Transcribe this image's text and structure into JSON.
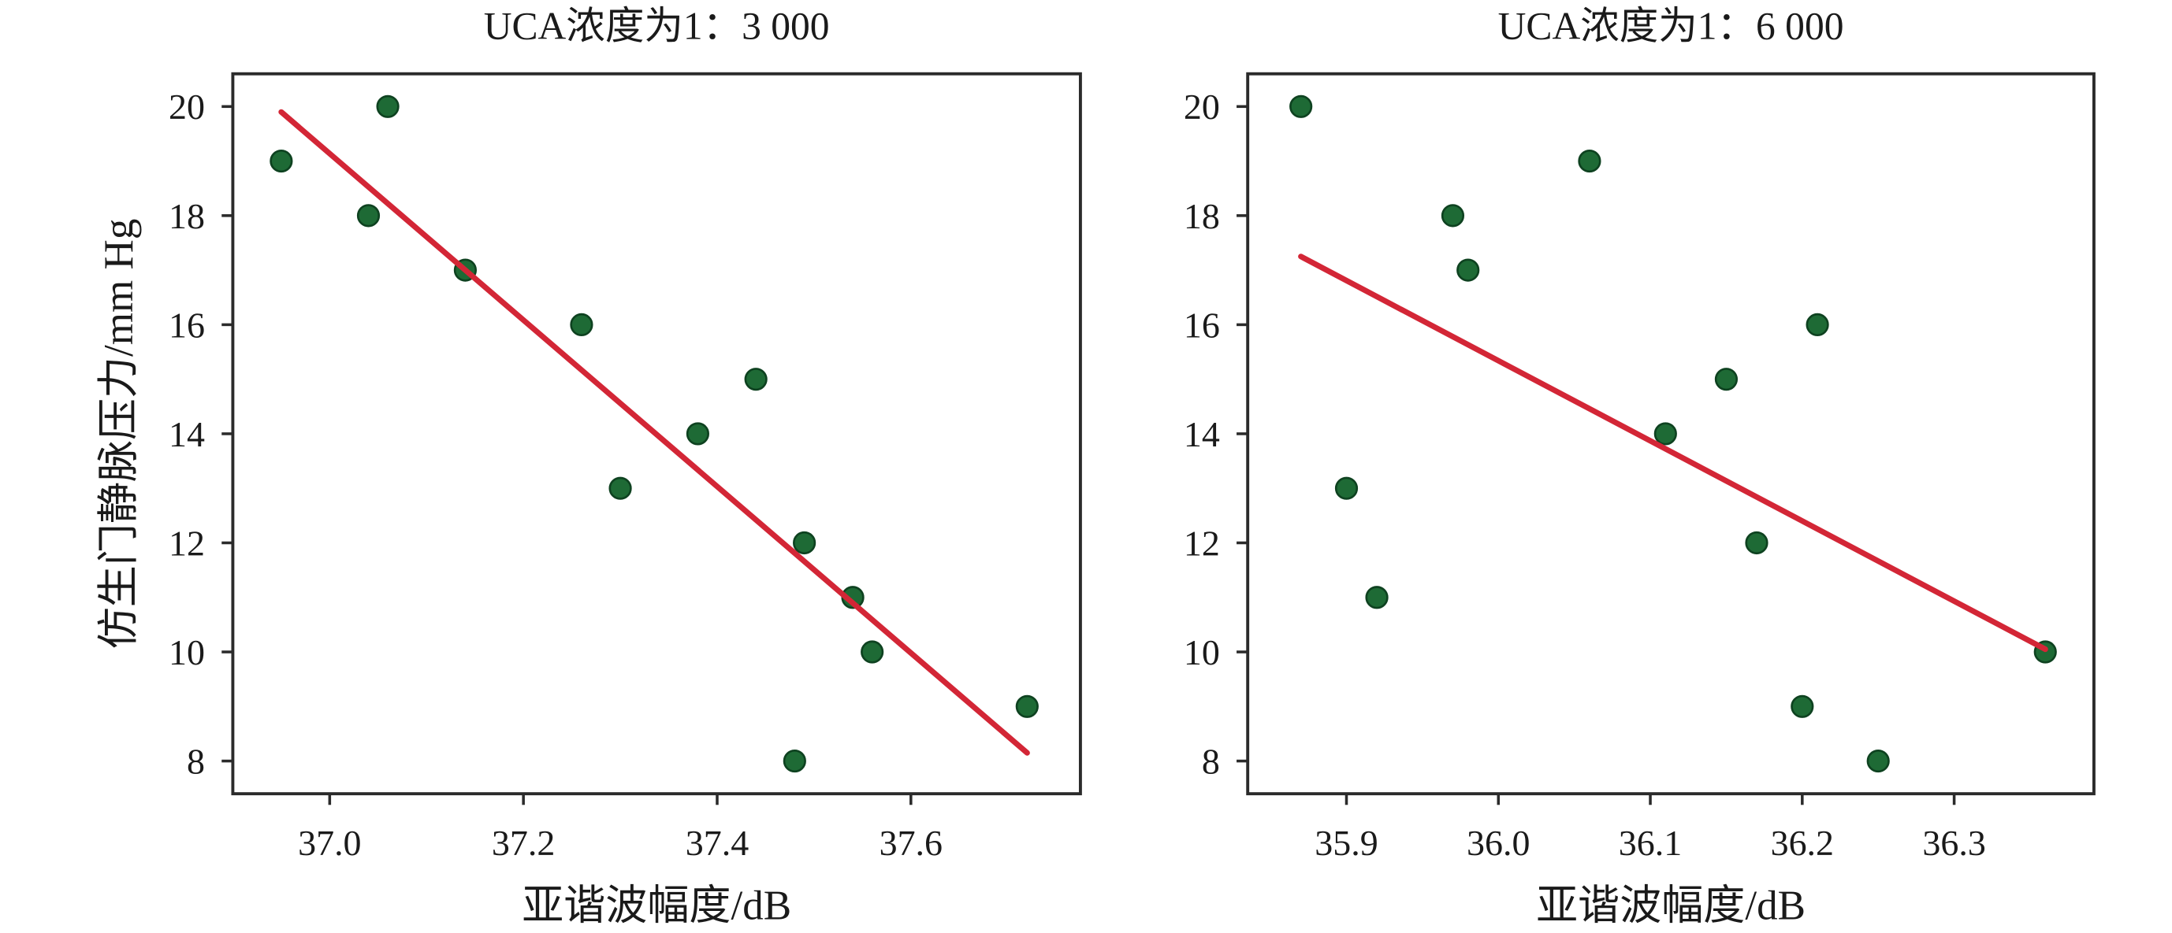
{
  "chart_data": [
    {
      "type": "scatter",
      "title": "UCA浓度为1：3 000",
      "xlabel": "亚谐波幅度/dB",
      "ylabel": "仿生门静脉压力/mm Hg",
      "xlim": [
        36.9,
        37.775
      ],
      "ylim": [
        7.4,
        20.6
      ],
      "x_ticks": [
        "37.0",
        "37.2",
        "37.4",
        "37.6"
      ],
      "y_ticks": [
        "8",
        "10",
        "12",
        "14",
        "16",
        "18",
        "20"
      ],
      "grid": false,
      "series": [
        {
          "x": [
            36.95,
            37.04,
            37.06,
            37.14,
            37.26,
            37.3,
            37.38,
            37.44,
            37.49,
            37.48,
            37.54,
            37.56,
            37.72
          ],
          "y": [
            19,
            18,
            20,
            17,
            16,
            13,
            14,
            15,
            12,
            8,
            11,
            10,
            9
          ]
        }
      ],
      "trendline": {
        "x": [
          36.95,
          37.72
        ],
        "y": [
          19.9,
          8.15
        ]
      }
    },
    {
      "type": "scatter",
      "title": "UCA浓度为1：6 000",
      "xlabel": "亚谐波幅度/dB",
      "ylabel": "",
      "xlim": [
        35.835,
        36.392
      ],
      "ylim": [
        7.4,
        20.6
      ],
      "x_ticks": [
        "35.9",
        "36.0",
        "36.1",
        "36.2",
        "36.3"
      ],
      "y_ticks": [
        "8",
        "10",
        "12",
        "14",
        "16",
        "18",
        "20"
      ],
      "grid": false,
      "series": [
        {
          "x": [
            35.87,
            35.9,
            35.92,
            35.97,
            35.98,
            36.06,
            36.11,
            36.15,
            36.17,
            36.2,
            36.21,
            36.25,
            36.36
          ],
          "y": [
            20,
            13,
            11,
            18,
            17,
            19,
            14,
            15,
            12,
            9,
            16,
            8,
            10
          ]
        }
      ],
      "trendline": {
        "x": [
          35.87,
          36.36
        ],
        "y": [
          17.25,
          10.05
        ]
      }
    }
  ],
  "colors": {
    "points": "#1e6a35",
    "point_edge": "#0e4220",
    "trendline": "#d32636",
    "frame": "#2b2b2b",
    "text": "#1a1a1a"
  }
}
